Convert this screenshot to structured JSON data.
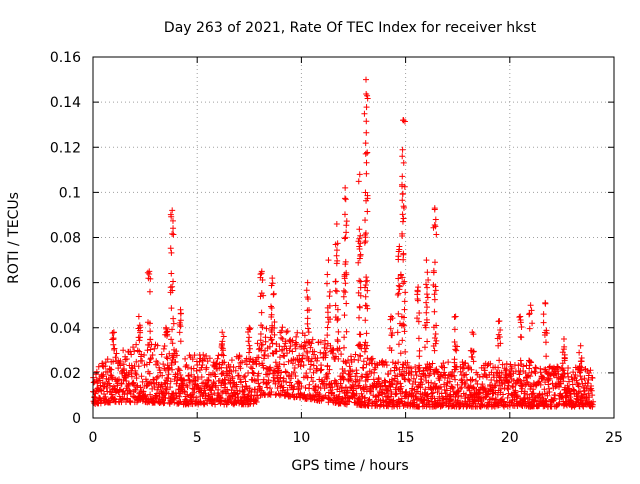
{
  "chart_data": {
    "type": "scatter",
    "title": "Day 263 of 2021, Rate Of TEC Index for receiver hkst",
    "xlabel": "GPS time / hours",
    "ylabel": "ROTI / TECUs",
    "xlim": [
      0,
      25
    ],
    "ylim": [
      0,
      0.16
    ],
    "x_ticks": [
      0,
      5,
      10,
      15,
      20,
      25
    ],
    "y_ticks": [
      0,
      0.02,
      0.04,
      0.06,
      0.08,
      0.1,
      0.12,
      0.14,
      0.16
    ],
    "x_tick_labels": [
      "0",
      "5",
      "10",
      "15",
      "20",
      "25"
    ],
    "y_tick_labels": [
      "0",
      "0.02",
      "0.04",
      "0.06",
      "0.08",
      "0.1",
      "0.12",
      "0.14",
      "0.16"
    ],
    "grid": true,
    "marker": "+",
    "marker_color": "#ff0000",
    "series": [
      {
        "name": "ROTI",
        "x_range": [
          0,
          24
        ],
        "baseline_envelope": [
          {
            "x": 0.0,
            "low": 0.006,
            "high": 0.02
          },
          {
            "x": 1.0,
            "low": 0.007,
            "high": 0.03
          },
          {
            "x": 2.5,
            "low": 0.007,
            "high": 0.035
          },
          {
            "x": 4.0,
            "low": 0.006,
            "high": 0.03
          },
          {
            "x": 6.0,
            "low": 0.006,
            "high": 0.028
          },
          {
            "x": 7.8,
            "low": 0.006,
            "high": 0.028
          },
          {
            "x": 8.0,
            "low": 0.01,
            "high": 0.045
          },
          {
            "x": 9.0,
            "low": 0.01,
            "high": 0.042
          },
          {
            "x": 10.5,
            "low": 0.008,
            "high": 0.038
          },
          {
            "x": 12.0,
            "low": 0.006,
            "high": 0.03
          },
          {
            "x": 14.0,
            "low": 0.005,
            "high": 0.025
          },
          {
            "x": 17.0,
            "low": 0.005,
            "high": 0.025
          },
          {
            "x": 20.0,
            "low": 0.005,
            "high": 0.024
          },
          {
            "x": 24.0,
            "low": 0.005,
            "high": 0.022
          }
        ],
        "spikes": [
          {
            "x": 1.0,
            "peak": 0.038
          },
          {
            "x": 2.2,
            "peak": 0.045
          },
          {
            "x": 2.7,
            "peak": 0.065
          },
          {
            "x": 3.5,
            "peak": 0.04
          },
          {
            "x": 3.8,
            "peak": 0.092
          },
          {
            "x": 4.2,
            "peak": 0.048
          },
          {
            "x": 6.2,
            "peak": 0.038
          },
          {
            "x": 7.5,
            "peak": 0.04
          },
          {
            "x": 8.1,
            "peak": 0.065
          },
          {
            "x": 8.6,
            "peak": 0.062
          },
          {
            "x": 10.3,
            "peak": 0.06
          },
          {
            "x": 11.3,
            "peak": 0.07
          },
          {
            "x": 11.7,
            "peak": 0.086
          },
          {
            "x": 12.1,
            "peak": 0.102
          },
          {
            "x": 12.8,
            "peak": 0.108
          },
          {
            "x": 13.1,
            "peak": 0.15
          },
          {
            "x": 14.3,
            "peak": 0.045
          },
          {
            "x": 14.7,
            "peak": 0.076
          },
          {
            "x": 14.9,
            "peak": 0.132
          },
          {
            "x": 15.6,
            "peak": 0.058
          },
          {
            "x": 16.0,
            "peak": 0.07
          },
          {
            "x": 16.4,
            "peak": 0.093
          },
          {
            "x": 17.4,
            "peak": 0.045
          },
          {
            "x": 18.2,
            "peak": 0.038
          },
          {
            "x": 19.5,
            "peak": 0.043
          },
          {
            "x": 20.5,
            "peak": 0.045
          },
          {
            "x": 21.0,
            "peak": 0.05
          },
          {
            "x": 21.7,
            "peak": 0.051
          },
          {
            "x": 22.6,
            "peak": 0.035
          },
          {
            "x": 23.4,
            "peak": 0.032
          }
        ]
      }
    ]
  }
}
